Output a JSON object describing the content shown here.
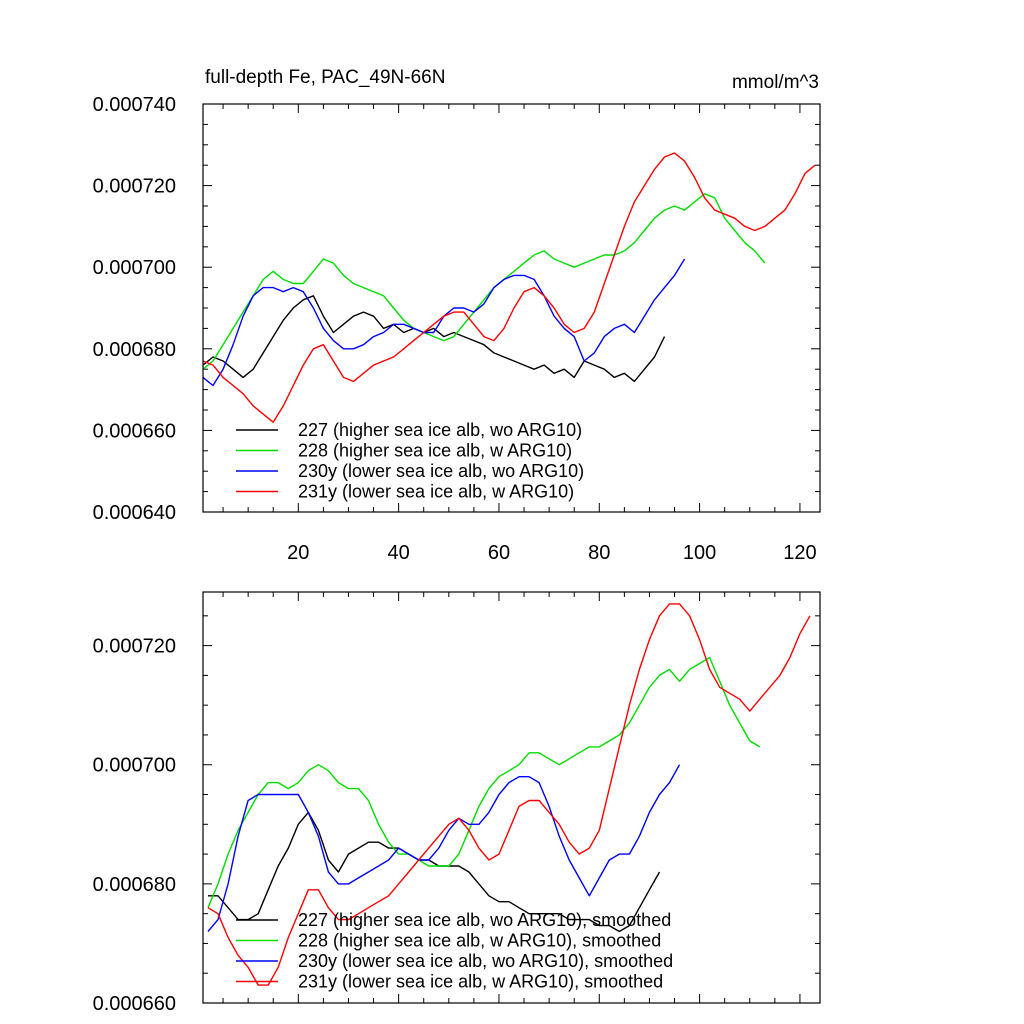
{
  "chart_data": [
    {
      "type": "line",
      "title": "full-depth Fe, PAC_49N-66N",
      "units": "mmol/m^3",
      "xlim": [
        1,
        124
      ],
      "ylim": [
        0.00064,
        0.00074
      ],
      "yticks": [
        "0.000640",
        "0.000660",
        "0.000680",
        "0.000700",
        "0.000720",
        "0.000740"
      ],
      "xticks": [
        "20",
        "40",
        "60",
        "80",
        "100",
        "120"
      ],
      "legend_position": "bottom-left",
      "series": [
        {
          "name": "227 (higher sea ice alb, wo ARG10)",
          "color": "#000000",
          "x": [
            1,
            3,
            5,
            7,
            9,
            11,
            13,
            15,
            17,
            19,
            21,
            23,
            25,
            27,
            29,
            31,
            33,
            35,
            37,
            39,
            41,
            43,
            45,
            47,
            49,
            51,
            53,
            55,
            57,
            59,
            61,
            63,
            65,
            67,
            69,
            71,
            73,
            75,
            77,
            79,
            81,
            83,
            85,
            87,
            89,
            91,
            93
          ],
          "values": [
            0.000676,
            0.000678,
            0.000677,
            0.000675,
            0.000673,
            0.000675,
            0.000679,
            0.000683,
            0.000687,
            0.00069,
            0.000692,
            0.000693,
            0.000688,
            0.000684,
            0.000686,
            0.000688,
            0.000689,
            0.000688,
            0.000685,
            0.000686,
            0.000684,
            0.000685,
            0.000684,
            0.000685,
            0.000683,
            0.000684,
            0.000683,
            0.000682,
            0.000681,
            0.000679,
            0.000678,
            0.000677,
            0.000676,
            0.000675,
            0.000676,
            0.000674,
            0.000675,
            0.000673,
            0.000677,
            0.000676,
            0.000675,
            0.000673,
            0.000674,
            0.000672,
            0.000675,
            0.000678,
            0.000683
          ]
        },
        {
          "name": "228 (higher sea ice alb, w ARG10)",
          "color": "#00dd00",
          "x": [
            1,
            3,
            5,
            7,
            9,
            11,
            13,
            15,
            17,
            19,
            21,
            23,
            25,
            27,
            29,
            31,
            33,
            35,
            37,
            39,
            41,
            43,
            45,
            47,
            49,
            51,
            53,
            55,
            57,
            59,
            61,
            63,
            65,
            67,
            69,
            71,
            73,
            75,
            77,
            79,
            81,
            83,
            85,
            87,
            89,
            91,
            93,
            95,
            97,
            99,
            101,
            103,
            105,
            107,
            109,
            111,
            113
          ],
          "values": [
            0.000675,
            0.000677,
            0.000681,
            0.000685,
            0.000689,
            0.000693,
            0.000697,
            0.000699,
            0.000697,
            0.000696,
            0.000696,
            0.000699,
            0.000702,
            0.000701,
            0.000698,
            0.000696,
            0.000695,
            0.000694,
            0.000693,
            0.00069,
            0.000687,
            0.000685,
            0.000684,
            0.000683,
            0.000682,
            0.000683,
            0.000686,
            0.000689,
            0.000692,
            0.000695,
            0.000697,
            0.000699,
            0.000701,
            0.000703,
            0.000704,
            0.000702,
            0.000701,
            0.0007,
            0.000701,
            0.000702,
            0.000703,
            0.000703,
            0.000704,
            0.000706,
            0.000709,
            0.000712,
            0.000714,
            0.000715,
            0.000714,
            0.000716,
            0.000718,
            0.000717,
            0.000712,
            0.000709,
            0.000706,
            0.000704,
            0.000701
          ]
        },
        {
          "name": "230y (lower sea ice alb, wo ARG10)",
          "color": "#0000ff",
          "x": [
            1,
            3,
            5,
            7,
            9,
            11,
            13,
            15,
            17,
            19,
            21,
            23,
            25,
            27,
            29,
            31,
            33,
            35,
            37,
            39,
            41,
            43,
            45,
            47,
            49,
            51,
            53,
            55,
            57,
            59,
            61,
            63,
            65,
            67,
            69,
            71,
            73,
            75,
            77,
            79,
            81,
            83,
            85,
            87,
            89,
            91,
            93,
            95,
            97
          ],
          "values": [
            0.000673,
            0.000671,
            0.000675,
            0.000681,
            0.000688,
            0.000693,
            0.000695,
            0.000695,
            0.000694,
            0.000695,
            0.000694,
            0.00069,
            0.000685,
            0.000682,
            0.00068,
            0.00068,
            0.000681,
            0.000683,
            0.000684,
            0.000686,
            0.000686,
            0.000685,
            0.000684,
            0.000684,
            0.000688,
            0.00069,
            0.00069,
            0.000689,
            0.000691,
            0.000695,
            0.000697,
            0.000698,
            0.000698,
            0.000697,
            0.000693,
            0.000688,
            0.000685,
            0.000683,
            0.000677,
            0.000679,
            0.000683,
            0.000685,
            0.000686,
            0.000684,
            0.000688,
            0.000692,
            0.000695,
            0.000698,
            0.000702
          ]
        },
        {
          "name": "231y (lower sea ice alb, w ARG10)",
          "color": "#ff0000",
          "x": [
            1,
            3,
            5,
            7,
            9,
            11,
            13,
            15,
            17,
            19,
            21,
            23,
            25,
            27,
            29,
            31,
            33,
            35,
            37,
            39,
            41,
            43,
            45,
            47,
            49,
            51,
            53,
            55,
            57,
            59,
            61,
            63,
            65,
            67,
            69,
            71,
            73,
            75,
            77,
            79,
            81,
            83,
            85,
            87,
            89,
            91,
            93,
            95,
            97,
            99,
            101,
            103,
            105,
            107,
            109,
            111,
            113,
            115,
            117,
            119,
            121,
            123
          ],
          "values": [
            0.000677,
            0.000676,
            0.000673,
            0.000671,
            0.000669,
            0.000666,
            0.000664,
            0.000662,
            0.000666,
            0.000671,
            0.000676,
            0.00068,
            0.000681,
            0.000677,
            0.000673,
            0.000672,
            0.000674,
            0.000676,
            0.000677,
            0.000678,
            0.00068,
            0.000682,
            0.000684,
            0.000686,
            0.000688,
            0.000689,
            0.000689,
            0.000686,
            0.000683,
            0.000682,
            0.000685,
            0.00069,
            0.000694,
            0.000695,
            0.000693,
            0.00069,
            0.000686,
            0.000684,
            0.000685,
            0.000689,
            0.000696,
            0.000703,
            0.00071,
            0.000716,
            0.00072,
            0.000724,
            0.000727,
            0.000728,
            0.000726,
            0.000722,
            0.000717,
            0.000714,
            0.000713,
            0.000712,
            0.00071,
            0.000709,
            0.00071,
            0.000712,
            0.000714,
            0.000718,
            0.000723,
            0.000725
          ]
        }
      ]
    },
    {
      "type": "line",
      "title": "",
      "xlim": [
        1,
        124
      ],
      "ylim": [
        0.00066,
        0.000729
      ],
      "yticks": [
        "0.000660",
        "0.000680",
        "0.000700",
        "0.000720"
      ],
      "xticks": [],
      "legend_position": "bottom-left",
      "series": [
        {
          "name": "227 (higher sea ice alb, wo ARG10), smoothed",
          "color": "#000000",
          "x": [
            2,
            4,
            6,
            8,
            10,
            12,
            14,
            16,
            18,
            20,
            22,
            24,
            26,
            28,
            30,
            32,
            34,
            36,
            38,
            40,
            42,
            44,
            46,
            48,
            50,
            52,
            54,
            56,
            58,
            60,
            62,
            64,
            66,
            68,
            70,
            72,
            74,
            76,
            78,
            80,
            82,
            84,
            86,
            88,
            90,
            92
          ],
          "values": [
            0.000678,
            0.000678,
            0.000676,
            0.000674,
            0.000674,
            0.000675,
            0.000679,
            0.000683,
            0.000686,
            0.00069,
            0.000692,
            0.000689,
            0.000684,
            0.000682,
            0.000685,
            0.000686,
            0.000687,
            0.000687,
            0.000686,
            0.000686,
            0.000685,
            0.000684,
            0.000684,
            0.000683,
            0.000683,
            0.000683,
            0.000682,
            0.00068,
            0.000678,
            0.000677,
            0.000677,
            0.000676,
            0.000675,
            0.000675,
            0.000675,
            0.000675,
            0.000674,
            0.000674,
            0.000674,
            0.000673,
            0.000673,
            0.000672,
            0.000673,
            0.000676,
            0.000679,
            0.000682
          ]
        },
        {
          "name": "228 (higher sea ice alb, w ARG10), smoothed",
          "color": "#00dd00",
          "x": [
            2,
            4,
            6,
            8,
            10,
            12,
            14,
            16,
            18,
            20,
            22,
            24,
            26,
            28,
            30,
            32,
            34,
            36,
            38,
            40,
            42,
            44,
            46,
            48,
            50,
            52,
            54,
            56,
            58,
            60,
            62,
            64,
            66,
            68,
            70,
            72,
            74,
            76,
            78,
            80,
            82,
            84,
            86,
            88,
            90,
            92,
            94,
            96,
            98,
            100,
            102,
            104,
            106,
            108,
            110,
            112
          ],
          "values": [
            0.000676,
            0.00068,
            0.000685,
            0.000689,
            0.000692,
            0.000695,
            0.000697,
            0.000697,
            0.000696,
            0.000697,
            0.000699,
            0.0007,
            0.000699,
            0.000697,
            0.000696,
            0.000696,
            0.000694,
            0.00069,
            0.000687,
            0.000685,
            0.000685,
            0.000684,
            0.000683,
            0.000683,
            0.000683,
            0.000685,
            0.000689,
            0.000693,
            0.000696,
            0.000698,
            0.000699,
            0.0007,
            0.000702,
            0.000702,
            0.000701,
            0.0007,
            0.000701,
            0.000702,
            0.000703,
            0.000703,
            0.000704,
            0.000705,
            0.000707,
            0.00071,
            0.000713,
            0.000715,
            0.000716,
            0.000714,
            0.000716,
            0.000717,
            0.000718,
            0.000714,
            0.00071,
            0.000707,
            0.000704,
            0.000703
          ]
        },
        {
          "name": "230y (lower sea ice alb, wo ARG10), smoothed",
          "color": "#0000ff",
          "x": [
            2,
            4,
            6,
            8,
            10,
            12,
            14,
            16,
            18,
            20,
            22,
            24,
            26,
            28,
            30,
            32,
            34,
            36,
            38,
            40,
            42,
            44,
            46,
            48,
            50,
            52,
            54,
            56,
            58,
            60,
            62,
            64,
            66,
            68,
            70,
            72,
            74,
            76,
            78,
            80,
            82,
            84,
            86,
            88,
            90,
            92,
            94,
            96
          ],
          "values": [
            0.000672,
            0.000674,
            0.00068,
            0.000688,
            0.000694,
            0.000695,
            0.000695,
            0.000695,
            0.000695,
            0.000695,
            0.000692,
            0.000688,
            0.000682,
            0.00068,
            0.00068,
            0.000681,
            0.000682,
            0.000683,
            0.000684,
            0.000686,
            0.000685,
            0.000684,
            0.000684,
            0.000686,
            0.000689,
            0.000691,
            0.00069,
            0.00069,
            0.000692,
            0.000695,
            0.000697,
            0.000698,
            0.000698,
            0.000697,
            0.000693,
            0.000688,
            0.000684,
            0.000681,
            0.000678,
            0.000681,
            0.000684,
            0.000685,
            0.000685,
            0.000688,
            0.000692,
            0.000695,
            0.000697,
            0.0007
          ]
        },
        {
          "name": "231y (lower sea ice alb, w ARG10), smoothed",
          "color": "#ff0000",
          "x": [
            2,
            4,
            6,
            8,
            10,
            12,
            14,
            16,
            18,
            20,
            22,
            24,
            26,
            28,
            30,
            32,
            34,
            36,
            38,
            40,
            42,
            44,
            46,
            48,
            50,
            52,
            54,
            56,
            58,
            60,
            62,
            64,
            66,
            68,
            70,
            72,
            74,
            76,
            78,
            80,
            82,
            84,
            86,
            88,
            90,
            92,
            94,
            96,
            98,
            100,
            102,
            104,
            106,
            108,
            110,
            112,
            114,
            116,
            118,
            120,
            122
          ],
          "values": [
            0.000676,
            0.000675,
            0.000671,
            0.000668,
            0.000666,
            0.000663,
            0.000663,
            0.000666,
            0.000671,
            0.000675,
            0.000679,
            0.000679,
            0.000676,
            0.000674,
            0.000674,
            0.000675,
            0.000676,
            0.000677,
            0.000678,
            0.00068,
            0.000682,
            0.000684,
            0.000686,
            0.000688,
            0.00069,
            0.000691,
            0.000689,
            0.000686,
            0.000684,
            0.000685,
            0.000689,
            0.000693,
            0.000694,
            0.000694,
            0.000692,
            0.00069,
            0.000687,
            0.000685,
            0.000686,
            0.000689,
            0.000696,
            0.000703,
            0.00071,
            0.000716,
            0.000721,
            0.000725,
            0.000727,
            0.000727,
            0.000725,
            0.000721,
            0.000716,
            0.000713,
            0.000712,
            0.000711,
            0.000709,
            0.000711,
            0.000713,
            0.000715,
            0.000718,
            0.000722,
            0.000725
          ]
        }
      ]
    }
  ]
}
